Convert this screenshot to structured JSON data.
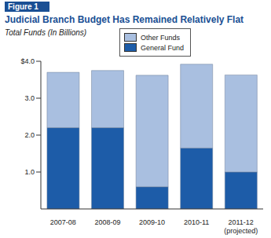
{
  "chart_data": {
    "type": "bar",
    "figure_label": "Figure 1",
    "title": "Judicial Branch Budget Has Remained Relatively Flat",
    "y_label": "Total Funds (In Billions)",
    "categories": [
      "2007-08",
      "2008-09",
      "2009-10",
      "2010-11",
      "2011-12\n(projected)"
    ],
    "series": [
      {
        "name": "Other Funds",
        "color": "#a9bfe0",
        "values": [
          1.5,
          1.55,
          3.02,
          2.27,
          2.63
        ]
      },
      {
        "name": "General Fund",
        "color": "#1d5ca8",
        "values": [
          2.2,
          2.2,
          0.6,
          1.65,
          1.0
        ]
      }
    ],
    "stacked": true,
    "grid": false,
    "ylim": [
      0,
      4
    ],
    "yticks": [
      {
        "value": 1,
        "label": "1.0"
      },
      {
        "value": 2,
        "label": "2.0"
      },
      {
        "value": 3,
        "label": "3.0"
      },
      {
        "value": 4,
        "label": "$4.0"
      }
    ]
  }
}
